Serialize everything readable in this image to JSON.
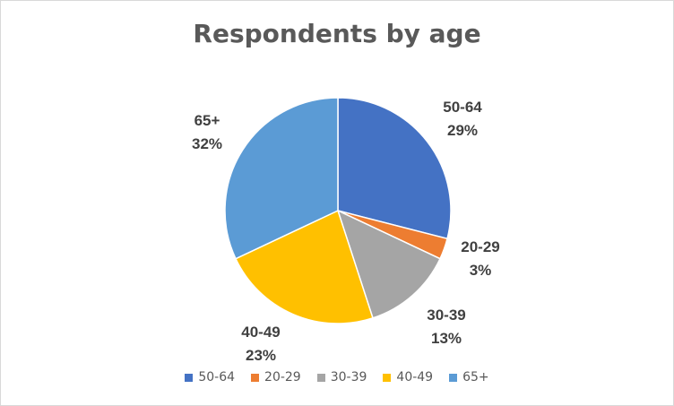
{
  "chart_data": {
    "type": "pie",
    "title": "Respondents by age",
    "legend_position": "bottom",
    "slices": [
      {
        "label": "50-64",
        "value": 29,
        "value_label": "29%",
        "color": "#4472C4"
      },
      {
        "label": "20-29",
        "value": 3,
        "value_label": "3%",
        "color": "#ED7D31"
      },
      {
        "label": "30-39",
        "value": 13,
        "value_label": "13%",
        "color": "#A5A5A5"
      },
      {
        "label": "40-49",
        "value": 23,
        "value_label": "23%",
        "color": "#FFC000"
      },
      {
        "label": "65+",
        "value": 32,
        "value_label": "32%",
        "color": "#5B9BD5"
      }
    ]
  }
}
